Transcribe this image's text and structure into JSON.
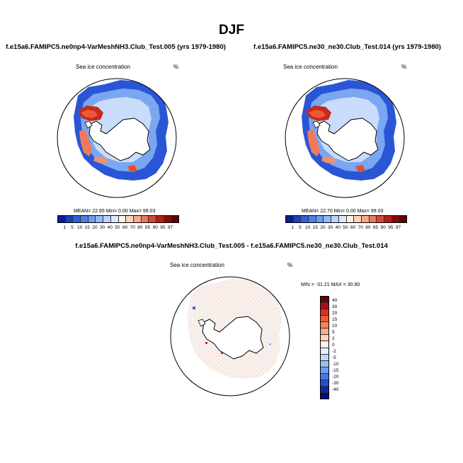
{
  "figure": {
    "title": "DJF"
  },
  "panels": [
    {
      "id": "top-left",
      "title": "f.e15a6.FAMIPC5.ne0np4-VarMeshNH3.Club_Test.005 (yrs 1979-1980)",
      "variable": "Sea ice concentration",
      "units": "%",
      "stats": "MEAN=  22.65  Min=   0.00  Max=  99.03"
    },
    {
      "id": "top-right",
      "title": "f.e15a6.FAMIPC5.ne30_ne30.Club_Test.014 (yrs 1979-1980)",
      "variable": "Sea ice concentration",
      "units": "%",
      "stats": "MEAN=  22.70  Min=   0.00  Max=  99.03"
    },
    {
      "id": "bottom-diff",
      "title": "f.e15a6.FAMIPC5.ne0np4-VarMeshNH3.Club_Test.005 - f.e15a6.FAMIPC5.ne30_ne30.Club_Test.014",
      "variable": "Sea ice concentration",
      "units": "%",
      "stats": "MIN = -31.21 MAX =  30.80"
    }
  ],
  "colorbar_main": {
    "labels": [
      "1",
      "5",
      "10",
      "15",
      "20",
      "30",
      "40",
      "50",
      "60",
      "70",
      "80",
      "85",
      "90",
      "95",
      "97"
    ],
    "colors": [
      "#0b1f8c",
      "#1d3fc2",
      "#2e5fe0",
      "#4c7ef0",
      "#6f9bf5",
      "#94b8f8",
      "#bdd3fb",
      "#dfe9fd",
      "#fff3e8",
      "#fcd3bb",
      "#f6a98b",
      "#eb7a5c",
      "#d9482f",
      "#b81f12",
      "#8c0a05",
      "#5e0202"
    ]
  },
  "colorbar_diff": {
    "labels": [
      "40",
      "30",
      "20",
      "15",
      "10",
      "5",
      "2",
      "0",
      "-2",
      "-5",
      "-10",
      "-15",
      "-20",
      "-30",
      "-40"
    ],
    "colors": [
      "#6b0000",
      "#a50f15",
      "#d7301f",
      "#ef5a33",
      "#f8835a",
      "#fcab88",
      "#fdd2bc",
      "#fff0e6",
      "#e6f0fe",
      "#c3d9fb",
      "#9bbdf7",
      "#6f9bf1",
      "#4677e6",
      "#2451cc",
      "#0d2aa0",
      "#00107a"
    ]
  }
}
